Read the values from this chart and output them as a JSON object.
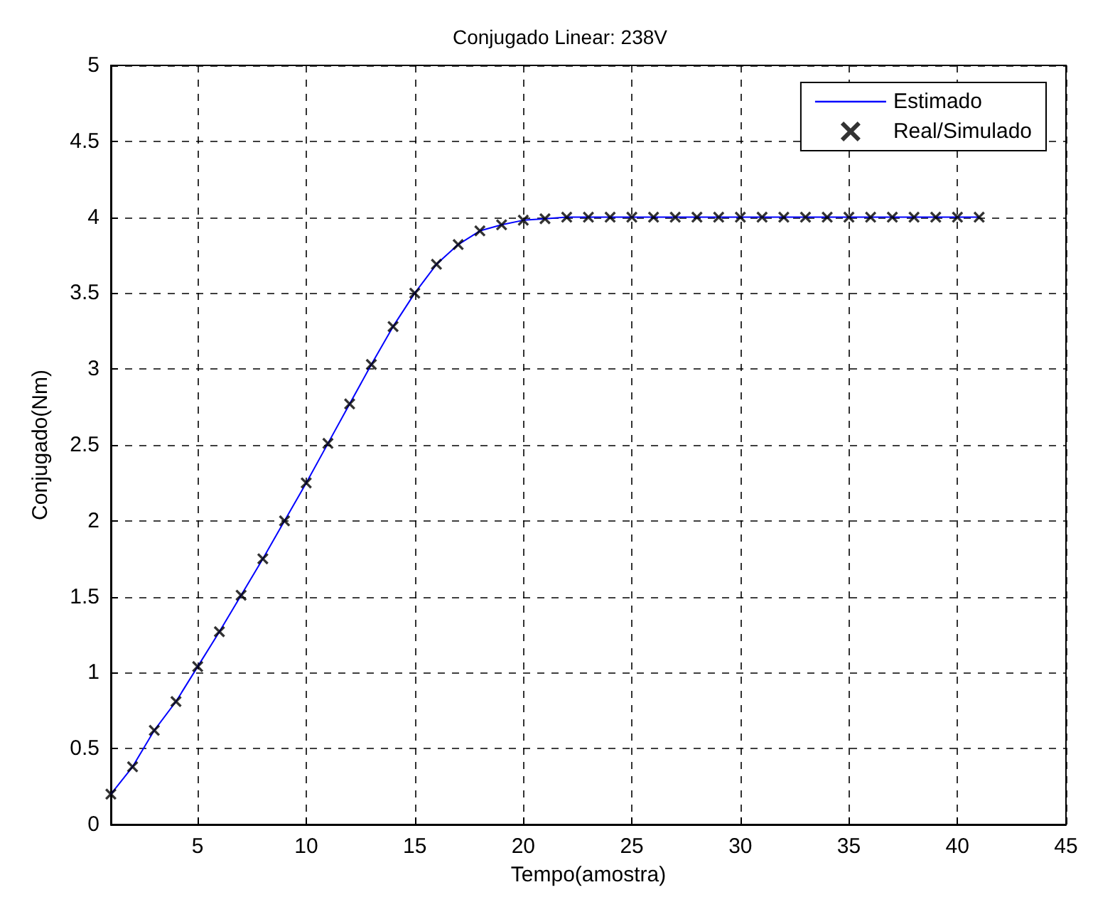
{
  "chart_data": {
    "type": "line",
    "title": "Conjugado Linear: 238V",
    "xlabel": "Tempo(amostra)",
    "ylabel": "Conjugado(Nm)",
    "x": [
      1,
      2,
      3,
      4,
      5,
      6,
      7,
      8,
      9,
      10,
      11,
      12,
      13,
      14,
      15,
      16,
      17,
      18,
      19,
      20,
      21,
      22,
      23,
      24,
      25,
      26,
      27,
      28,
      29,
      30,
      31,
      32,
      33,
      34,
      35,
      36,
      37,
      38,
      39,
      40,
      41
    ],
    "series": [
      {
        "name": "Estimado",
        "color": "#0000ff",
        "marker": "none",
        "line_style": "solid",
        "values": [
          0.2,
          0.38,
          0.62,
          0.81,
          1.04,
          1.27,
          1.51,
          1.75,
          2.0,
          2.25,
          2.51,
          2.77,
          3.03,
          3.28,
          3.5,
          3.69,
          3.82,
          3.91,
          3.95,
          3.98,
          3.99,
          4.0,
          4.0,
          4.0,
          4.0,
          4.0,
          4.0,
          4.0,
          4.0,
          4.0,
          4.0,
          4.0,
          4.0,
          4.0,
          4.0,
          4.0,
          4.0,
          4.0,
          4.0,
          4.0,
          4.0
        ]
      },
      {
        "name": "Real/Simulado",
        "type": "scatter",
        "color": "#000000",
        "marker": "cross",
        "values": [
          0.2,
          0.38,
          0.62,
          0.81,
          1.04,
          1.27,
          1.51,
          1.75,
          2.0,
          2.25,
          2.51,
          2.77,
          3.03,
          3.28,
          3.5,
          3.69,
          3.82,
          3.91,
          3.95,
          3.98,
          3.99,
          4.0,
          4.0,
          4.0,
          4.0,
          4.0,
          4.0,
          4.0,
          4.0,
          4.0,
          4.0,
          4.0,
          4.0,
          4.0,
          4.0,
          4.0,
          4.0,
          4.0,
          4.0,
          4.0,
          4.0
        ]
      }
    ],
    "xlim": [
      1,
      45
    ],
    "xticks": [
      5,
      10,
      15,
      20,
      25,
      30,
      35,
      40,
      45
    ],
    "ylim": [
      0,
      5
    ],
    "yticks": [
      0,
      0.5,
      1,
      1.5,
      2,
      2.5,
      3,
      3.5,
      4,
      4.5,
      5
    ],
    "grid": true,
    "legend": "top right"
  }
}
